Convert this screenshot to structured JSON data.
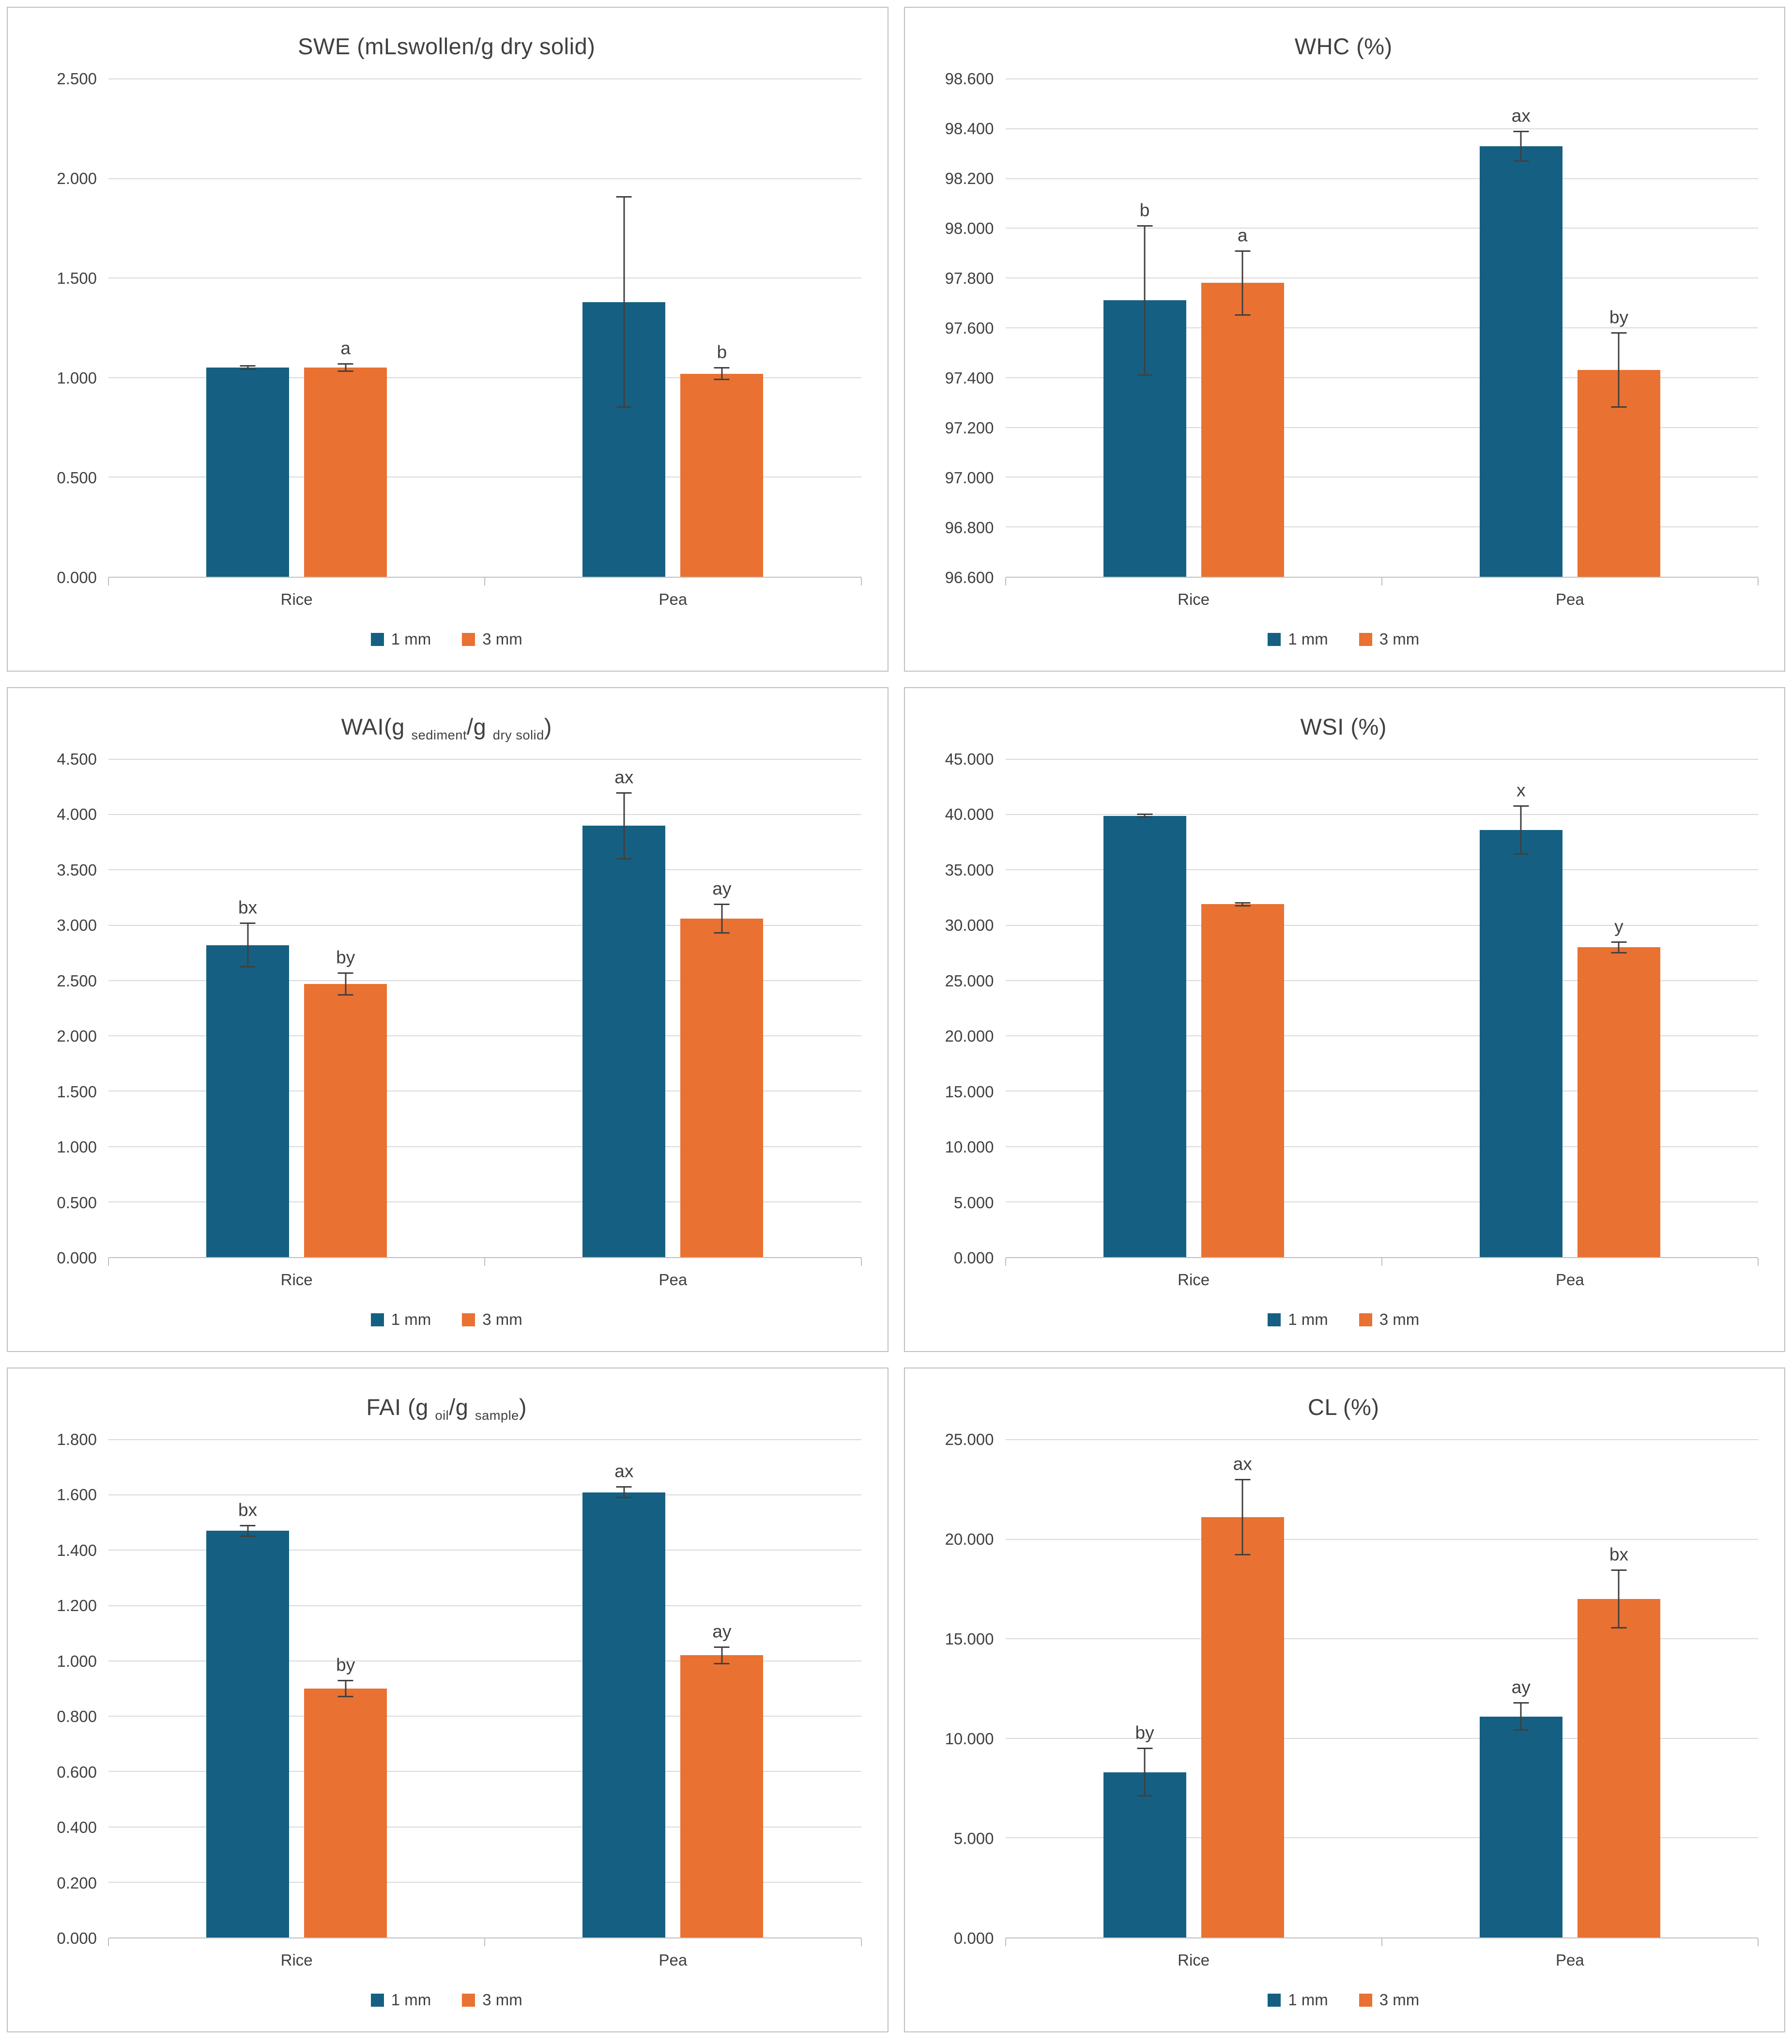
{
  "page": {
    "background": "#FFFFFF",
    "panel_border": "#BFBFBF",
    "gridline_color": "#D9D9D9",
    "axis_color": "#BFBFBF",
    "text_color": "#404040",
    "series1_color": "#156082",
    "series2_color": "#E97132"
  },
  "chart_data": [
    {
      "id": "swe",
      "type": "bar",
      "title": "SWE (mLswollen/g dry solid)",
      "title_segments": [
        {
          "t": "SWE (mLswollen/g dry solid)"
        }
      ],
      "categories": [
        "Rice",
        "Pea"
      ],
      "ylim": [
        0,
        2.5
      ],
      "yticks": [
        "0.000",
        "0.500",
        "1.000",
        "1.500",
        "2.000",
        "2.500"
      ],
      "grid": true,
      "legend_position": "bottom",
      "series": [
        {
          "name": "1 mm",
          "color": "#156082",
          "values": [
            1.05,
            1.38
          ],
          "errors": [
            0.01,
            0.53
          ],
          "labels": [
            "",
            ""
          ]
        },
        {
          "name": "3 mm",
          "color": "#E97132",
          "values": [
            1.05,
            1.02
          ],
          "errors": [
            0.02,
            0.03
          ],
          "labels": [
            "a",
            "b"
          ]
        }
      ]
    },
    {
      "id": "whc",
      "type": "bar",
      "title": "WHC (%)",
      "title_segments": [
        {
          "t": "WHC (%)"
        }
      ],
      "categories": [
        "Rice",
        "Pea"
      ],
      "ylim": [
        96.6,
        98.6
      ],
      "yticks": [
        "96.600",
        "96.800",
        "97.000",
        "97.200",
        "97.400",
        "97.600",
        "97.800",
        "98.000",
        "98.200",
        "98.400",
        "98.600"
      ],
      "grid": true,
      "legend_position": "bottom",
      "series": [
        {
          "name": "1 mm",
          "color": "#156082",
          "values": [
            97.71,
            98.33
          ],
          "errors": [
            0.3,
            0.06
          ],
          "labels": [
            "b",
            "ax"
          ]
        },
        {
          "name": "3 mm",
          "color": "#E97132",
          "values": [
            97.78,
            97.43
          ],
          "errors": [
            0.13,
            0.15
          ],
          "labels": [
            "a",
            "by"
          ]
        }
      ]
    },
    {
      "id": "wai",
      "type": "bar",
      "title": "WAI(g sediment/g dry solid)",
      "title_segments": [
        {
          "t": "WAI("
        },
        {
          "t": "g "
        },
        {
          "t": "sediment",
          "sub": true
        },
        {
          "t": "/g "
        },
        {
          "t": "dry solid",
          "sub": true
        },
        {
          "t": ")"
        }
      ],
      "categories": [
        "Rice",
        "Pea"
      ],
      "ylim": [
        0,
        4.5
      ],
      "yticks": [
        "0.000",
        "0.500",
        "1.000",
        "1.500",
        "2.000",
        "2.500",
        "3.000",
        "3.500",
        "4.000",
        "4.500"
      ],
      "grid": true,
      "legend_position": "bottom",
      "series": [
        {
          "name": "1 mm",
          "color": "#156082",
          "values": [
            2.82,
            3.9
          ],
          "errors": [
            0.2,
            0.3
          ],
          "labels": [
            "bx",
            "ax"
          ]
        },
        {
          "name": "3 mm",
          "color": "#E97132",
          "values": [
            2.47,
            3.06
          ],
          "errors": [
            0.1,
            0.13
          ],
          "labels": [
            "by",
            "ay"
          ]
        }
      ]
    },
    {
      "id": "wsi",
      "type": "bar",
      "title": "WSI (%)",
      "title_segments": [
        {
          "t": "WSI (%)"
        }
      ],
      "categories": [
        "Rice",
        "Pea"
      ],
      "ylim": [
        0,
        45
      ],
      "yticks": [
        "0.000",
        "5.000",
        "10.000",
        "15.000",
        "20.000",
        "25.000",
        "30.000",
        "35.000",
        "40.000",
        "45.000"
      ],
      "grid": true,
      "legend_position": "bottom",
      "series": [
        {
          "name": "1 mm",
          "color": "#156082",
          "values": [
            39.9,
            38.6
          ],
          "errors": [
            0.15,
            2.2
          ],
          "labels": [
            "",
            "x"
          ]
        },
        {
          "name": "3 mm",
          "color": "#E97132",
          "values": [
            31.9,
            28.0
          ],
          "errors": [
            0.15,
            0.5
          ],
          "labels": [
            "",
            "y"
          ]
        }
      ]
    },
    {
      "id": "fai",
      "type": "bar",
      "title": "FAI (g oil/g sample)",
      "title_segments": [
        {
          "t": "FAI ("
        },
        {
          "t": "g "
        },
        {
          "t": "oil",
          "sub": true
        },
        {
          "t": "/g "
        },
        {
          "t": "sample",
          "sub": true
        },
        {
          "t": ")"
        }
      ],
      "categories": [
        "Rice",
        "Pea"
      ],
      "ylim": [
        0,
        1.8
      ],
      "yticks": [
        "0.000",
        "0.200",
        "0.400",
        "0.600",
        "0.800",
        "1.000",
        "1.200",
        "1.400",
        "1.600",
        "1.800"
      ],
      "grid": true,
      "legend_position": "bottom",
      "series": [
        {
          "name": "1 mm",
          "color": "#156082",
          "values": [
            1.47,
            1.61
          ],
          "errors": [
            0.02,
            0.02
          ],
          "labels": [
            "bx",
            "ax"
          ]
        },
        {
          "name": "3 mm",
          "color": "#E97132",
          "values": [
            0.9,
            1.02
          ],
          "errors": [
            0.03,
            0.03
          ],
          "labels": [
            "by",
            "ay"
          ]
        }
      ]
    },
    {
      "id": "cl",
      "type": "bar",
      "title": "CL (%)",
      "title_segments": [
        {
          "t": "CL (%)"
        }
      ],
      "categories": [
        "Rice",
        "Pea"
      ],
      "ylim": [
        0,
        25
      ],
      "yticks": [
        "0.000",
        "5.000",
        "10.000",
        "15.000",
        "20.000",
        "25.000"
      ],
      "grid": true,
      "legend_position": "bottom",
      "series": [
        {
          "name": "1 mm",
          "color": "#156082",
          "values": [
            8.3,
            11.1
          ],
          "errors": [
            1.2,
            0.7
          ],
          "labels": [
            "by",
            "ay"
          ]
        },
        {
          "name": "3 mm",
          "color": "#E97132",
          "values": [
            21.1,
            17.0
          ],
          "errors": [
            1.9,
            1.45
          ],
          "labels": [
            "ax",
            "bx"
          ]
        }
      ]
    }
  ]
}
